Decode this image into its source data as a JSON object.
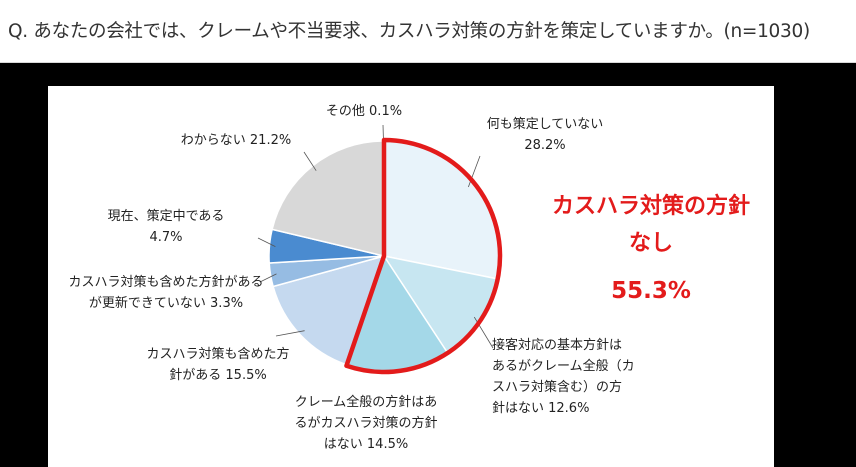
{
  "question": "Q. あなたの会社では、クレームや不当要求、カスハラ対策の方針を策定していますか。(n=1030)",
  "highlight": {
    "line1": "カスハラ対策の方針",
    "line2": "なし",
    "value": "55.3%",
    "color": "#e31b1b"
  },
  "chart_data": {
    "type": "pie",
    "start": "12 o'clock, clockwise",
    "slices": [
      {
        "label_lines": [
          "何も策定していない",
          "28.2%"
        ],
        "value": 28.2,
        "color": "#e8f3fa"
      },
      {
        "label_lines": [
          "接客対応の基本方針は",
          "あるがクレーム全般（カ",
          "スハラ対策含む）の方",
          "針はない 12.6%"
        ],
        "value": 12.6,
        "color": "#c7e6f1"
      },
      {
        "label_lines": [
          "クレーム全般の方針はあ",
          "るがカスハラ対策の方針",
          "はない 14.5%"
        ],
        "value": 14.5,
        "color": "#a4d8e8"
      },
      {
        "label_lines": [
          "カスハラ対策も含めた方",
          "針がある 15.5%"
        ],
        "value": 15.5,
        "color": "#c5d9ef"
      },
      {
        "label_lines": [
          "カスハラ対策も含めた方針がある",
          "が更新できていない 3.3%"
        ],
        "value": 3.3,
        "color": "#96bce3"
      },
      {
        "label_lines": [
          "現在、策定中である",
          "4.7%"
        ],
        "value": 4.7,
        "color": "#4a8bd0"
      },
      {
        "label_lines": [
          "わからない 21.2%"
        ],
        "value": 21.2,
        "color": "#d8d8d8"
      },
      {
        "label_lines": [
          "その他 0.1%"
        ],
        "value": 0.1,
        "color": "#bdbdbd"
      }
    ]
  }
}
